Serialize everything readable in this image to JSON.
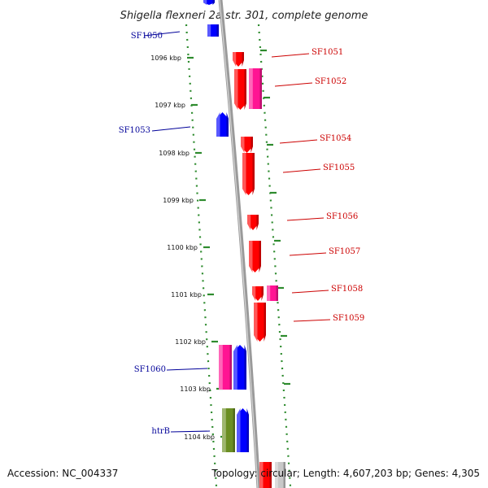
{
  "title": "Shigella flexneri 2a str. 301, complete genome",
  "accession": "Accession: NC_004337",
  "summary": "Topology: circular; Length: 4,607,203 bp; Genes: 4,305",
  "colors": {
    "backbone": "#8f8f8f",
    "ticks": "#2e8b2e",
    "forward_cds": "#ff0000",
    "reverse_cds": "#0000ff",
    "rna": "#ff1493",
    "other": "#6b8e23",
    "label_forward": "#cc0000",
    "label_reverse": "#000099"
  },
  "ticks": [
    {
      "label": "1096 kbp"
    },
    {
      "label": "1097 kbp"
    },
    {
      "label": "1098 kbp"
    },
    {
      "label": "1099 kbp"
    },
    {
      "label": "1100 kbp"
    },
    {
      "label": "1101 kbp"
    },
    {
      "label": "1102 kbp"
    },
    {
      "label": "1103 kbp"
    },
    {
      "label": "1104 kbp"
    }
  ],
  "gene_labels": [
    {
      "name": "SF1050",
      "strand": "reverse"
    },
    {
      "name": "SF1051",
      "strand": "forward"
    },
    {
      "name": "SF1052",
      "strand": "forward"
    },
    {
      "name": "SF1053",
      "strand": "reverse"
    },
    {
      "name": "SF1054",
      "strand": "forward"
    },
    {
      "name": "SF1055",
      "strand": "forward"
    },
    {
      "name": "SF1056",
      "strand": "forward"
    },
    {
      "name": "SF1057",
      "strand": "forward"
    },
    {
      "name": "SF1058",
      "strand": "forward"
    },
    {
      "name": "SF1059",
      "strand": "forward"
    },
    {
      "name": "SF1060",
      "strand": "reverse"
    },
    {
      "name": "htrB",
      "strand": "reverse"
    }
  ]
}
